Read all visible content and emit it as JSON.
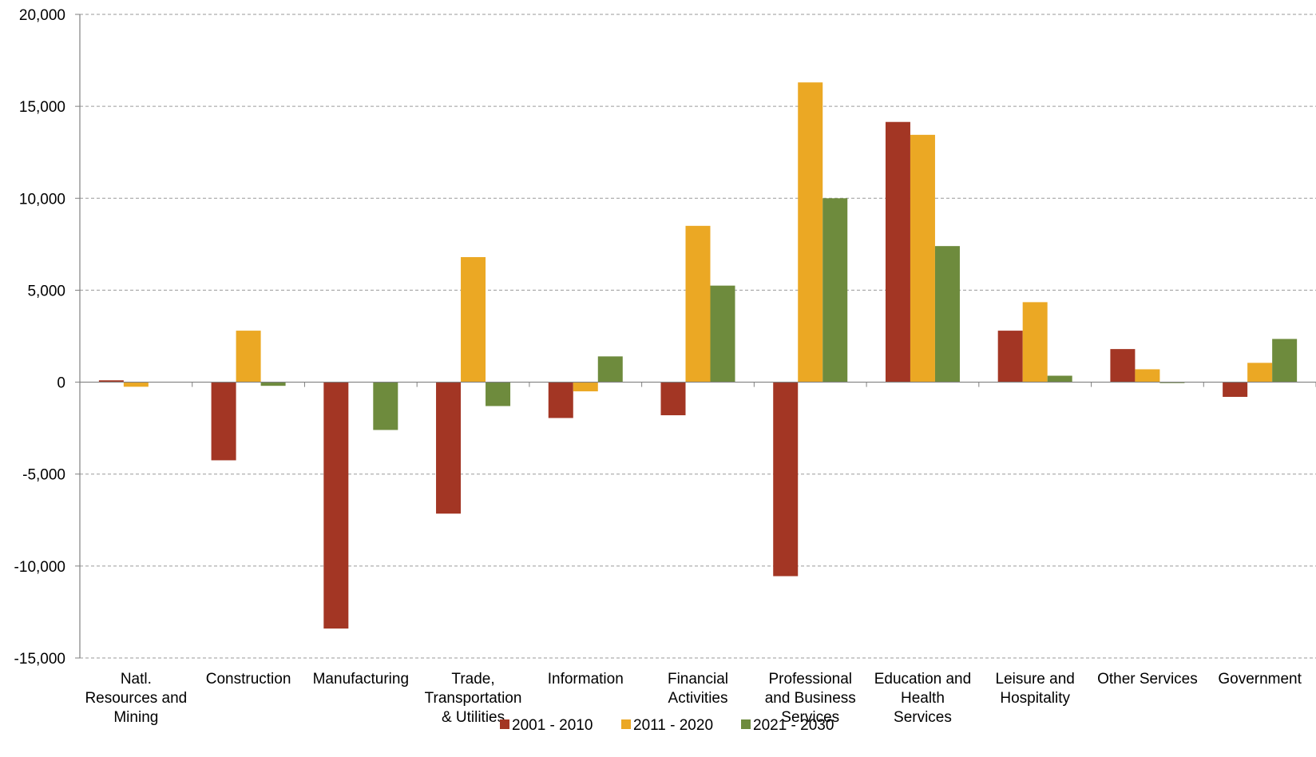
{
  "chart_data": {
    "type": "bar",
    "title": "",
    "xlabel": "",
    "ylabel": "",
    "ylim": [
      -15000,
      20000
    ],
    "yticks": [
      -15000,
      -10000,
      -5000,
      0,
      5000,
      10000,
      15000,
      20000
    ],
    "ytick_labels": [
      "-15,000",
      "-10,000",
      "-5,000",
      "0",
      "5,000",
      "10,000",
      "15,000",
      "20,000"
    ],
    "grid": "horizontal dashed",
    "legend_position": "bottom-center",
    "categories": [
      [
        "Natl.",
        "Resources and",
        "Mining"
      ],
      [
        "Construction"
      ],
      [
        "Manufacturing"
      ],
      [
        "Trade,",
        "Transportation",
        "& Utilities"
      ],
      [
        "Information"
      ],
      [
        "Financial",
        "Activities"
      ],
      [
        "Professional",
        "and Business",
        "Services"
      ],
      [
        "Education and",
        "Health",
        "Services"
      ],
      [
        "Leisure and",
        "Hospitality"
      ],
      [
        "Other Services"
      ],
      [
        "Government"
      ]
    ],
    "series": [
      {
        "name": "2001 - 2010",
        "color": "#A33624",
        "values": [
          100,
          -4250,
          -13400,
          -7150,
          -1950,
          -1800,
          -10550,
          14150,
          2800,
          1800,
          -800
        ]
      },
      {
        "name": "2011 - 2020",
        "color": "#EBA824",
        "values": [
          -250,
          2800,
          0,
          6800,
          -500,
          8500,
          16300,
          13450,
          4350,
          700,
          1050
        ]
      },
      {
        "name": "2021 - 2030",
        "color": "#6E8B3D",
        "values": [
          0,
          -200,
          -2600,
          -1300,
          1400,
          5250,
          10000,
          7400,
          350,
          -50,
          2350
        ]
      }
    ]
  }
}
